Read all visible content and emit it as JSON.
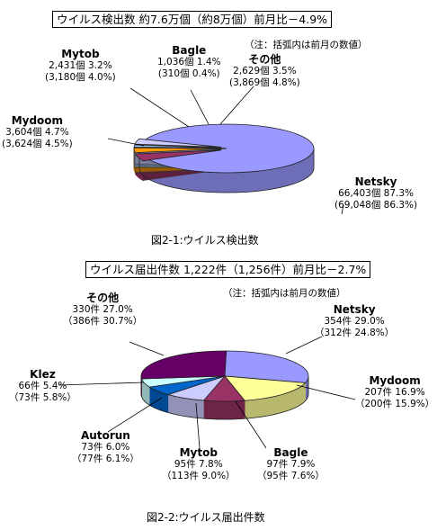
{
  "colors": {
    "blue": "#9999ff",
    "yellow": "#ffff99",
    "maroon": "#993366",
    "lavender": "#ccccff",
    "navy": "#0066cc",
    "cyan": "#ccffff",
    "purple": "#660066",
    "orange": "#ff9900",
    "lightblue": "#99ccff"
  },
  "chart_data": [
    {
      "type": "pie",
      "title": "ウイルス検出数  約7.6万個（約8万個）前月比－4.9%",
      "note": "（注：括弧内は前月の数値）",
      "caption": "図2-1:ウイルス検出数",
      "slices": [
        {
          "name": "Netsky",
          "line1": "66,403個 87.3%",
          "line2": "(69,048個 86.3%)",
          "value": 87.3,
          "color": "blue"
        },
        {
          "name": "Mydoom",
          "line1": "3,604個 4.7%",
          "line2": "(3,624個 4.5%)",
          "value": 4.7,
          "color": "maroon"
        },
        {
          "name": "Mytob",
          "line1": "2,431個 3.2%",
          "line2": "(3,180個 4.0%)",
          "value": 3.2,
          "color": "orange"
        },
        {
          "name": "Bagle",
          "line1": "1,036個 1.4%",
          "line2": "(310個 0.4%)",
          "value": 1.4,
          "color": "lightblue"
        },
        {
          "name": "その他",
          "line1": "2,629個 3.5%",
          "line2": "(3,869個 4.8%)",
          "value": 3.5,
          "color": "lavender"
        }
      ]
    },
    {
      "type": "pie",
      "title": "ウイルス届出件数  1,222件（1,256件）前月比－2.7%",
      "note": "（注：括弧内は前月の数値）",
      "caption": "図2-2:ウイルス届出件数",
      "slices": [
        {
          "name": "Netsky",
          "line1": "354件 29.0%",
          "line2": "（312件 24.8%）",
          "value": 29.0,
          "color": "blue"
        },
        {
          "name": "Mydoom",
          "line1": "207件 16.9%",
          "line2": "（200件 15.9%）",
          "value": 16.9,
          "color": "yellow"
        },
        {
          "name": "Bagle",
          "line1": "97件 7.9%",
          "line2": "（95件 7.6%）",
          "value": 7.9,
          "color": "maroon"
        },
        {
          "name": "Mytob",
          "line1": "95件 7.8%",
          "line2": "（113件 9.0%）",
          "value": 7.8,
          "color": "lavender"
        },
        {
          "name": "Autorun",
          "line1": "73件 6.0%",
          "line2": "（77件 6.1%）",
          "value": 6.0,
          "color": "navy"
        },
        {
          "name": "Klez",
          "line1": "66件 5.4%",
          "line2": "（73件 5.8%）",
          "value": 5.4,
          "color": "cyan"
        },
        {
          "name": "その他",
          "line1": "330件 27.0%",
          "line2": "（386件 30.7%）",
          "value": 27.0,
          "color": "purple"
        }
      ]
    }
  ]
}
